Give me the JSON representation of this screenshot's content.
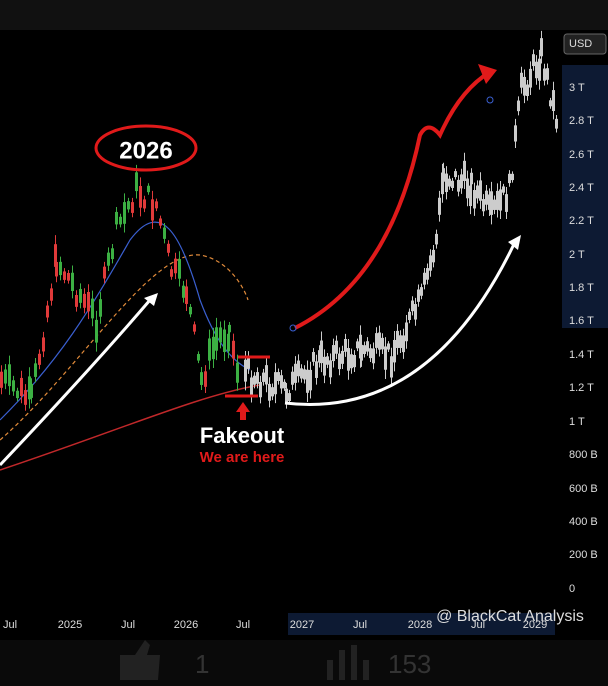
{
  "price_axis": {
    "currency": "USD",
    "labels": [
      "3 T",
      "2.8 T",
      "2.6 T",
      "2.4 T",
      "2.2 T",
      "2 T",
      "1.8 T",
      "1.6 T",
      "1.4 T",
      "1.2 T",
      "1 T",
      "800 B",
      "600 B",
      "400 B",
      "200 B",
      "0"
    ]
  },
  "time_axis": {
    "labels": [
      "Jul",
      "2025",
      "Jul",
      "2026",
      "Jul",
      "2027",
      "Jul",
      "2028",
      "Jul",
      "2029"
    ]
  },
  "annotations": {
    "peak_label": "2026",
    "fakeout": "Fakeout",
    "status": "We are here"
  },
  "watermark": "@ BlackCat Analysis",
  "footer": {
    "likes": "1",
    "views": "153"
  }
}
